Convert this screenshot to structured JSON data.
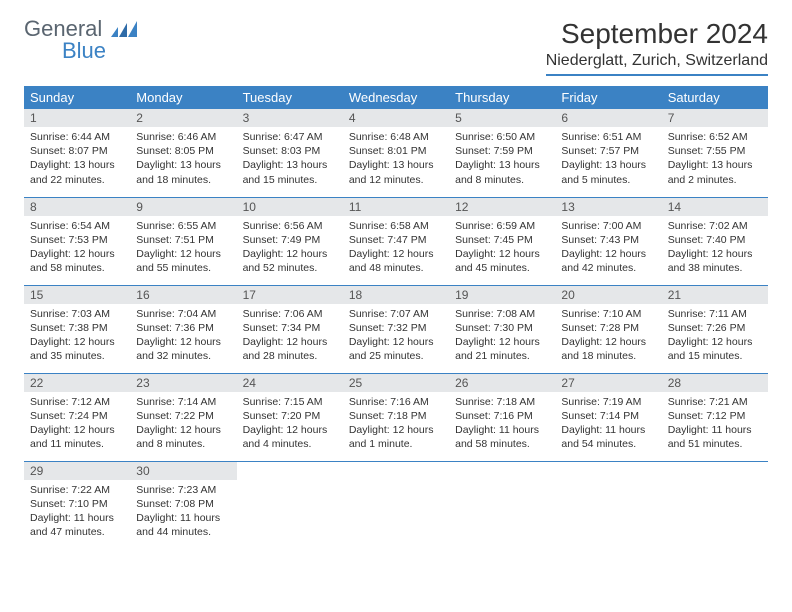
{
  "logo": {
    "general": "General",
    "blue": "Blue"
  },
  "title": "September 2024",
  "location": "Niederglatt, Zurich, Switzerland",
  "colors": {
    "header_bg": "#3b82c4",
    "daynum_bg": "#e5e7e9",
    "text": "#333333",
    "logo_gray": "#5a6570",
    "logo_blue": "#3b82c4"
  },
  "weekdays": [
    "Sunday",
    "Monday",
    "Tuesday",
    "Wednesday",
    "Thursday",
    "Friday",
    "Saturday"
  ],
  "weeks": [
    [
      {
        "n": "1",
        "sr": "Sunrise: 6:44 AM",
        "ss": "Sunset: 8:07 PM",
        "dl": "Daylight: 13 hours and 22 minutes."
      },
      {
        "n": "2",
        "sr": "Sunrise: 6:46 AM",
        "ss": "Sunset: 8:05 PM",
        "dl": "Daylight: 13 hours and 18 minutes."
      },
      {
        "n": "3",
        "sr": "Sunrise: 6:47 AM",
        "ss": "Sunset: 8:03 PM",
        "dl": "Daylight: 13 hours and 15 minutes."
      },
      {
        "n": "4",
        "sr": "Sunrise: 6:48 AM",
        "ss": "Sunset: 8:01 PM",
        "dl": "Daylight: 13 hours and 12 minutes."
      },
      {
        "n": "5",
        "sr": "Sunrise: 6:50 AM",
        "ss": "Sunset: 7:59 PM",
        "dl": "Daylight: 13 hours and 8 minutes."
      },
      {
        "n": "6",
        "sr": "Sunrise: 6:51 AM",
        "ss": "Sunset: 7:57 PM",
        "dl": "Daylight: 13 hours and 5 minutes."
      },
      {
        "n": "7",
        "sr": "Sunrise: 6:52 AM",
        "ss": "Sunset: 7:55 PM",
        "dl": "Daylight: 13 hours and 2 minutes."
      }
    ],
    [
      {
        "n": "8",
        "sr": "Sunrise: 6:54 AM",
        "ss": "Sunset: 7:53 PM",
        "dl": "Daylight: 12 hours and 58 minutes."
      },
      {
        "n": "9",
        "sr": "Sunrise: 6:55 AM",
        "ss": "Sunset: 7:51 PM",
        "dl": "Daylight: 12 hours and 55 minutes."
      },
      {
        "n": "10",
        "sr": "Sunrise: 6:56 AM",
        "ss": "Sunset: 7:49 PM",
        "dl": "Daylight: 12 hours and 52 minutes."
      },
      {
        "n": "11",
        "sr": "Sunrise: 6:58 AM",
        "ss": "Sunset: 7:47 PM",
        "dl": "Daylight: 12 hours and 48 minutes."
      },
      {
        "n": "12",
        "sr": "Sunrise: 6:59 AM",
        "ss": "Sunset: 7:45 PM",
        "dl": "Daylight: 12 hours and 45 minutes."
      },
      {
        "n": "13",
        "sr": "Sunrise: 7:00 AM",
        "ss": "Sunset: 7:43 PM",
        "dl": "Daylight: 12 hours and 42 minutes."
      },
      {
        "n": "14",
        "sr": "Sunrise: 7:02 AM",
        "ss": "Sunset: 7:40 PM",
        "dl": "Daylight: 12 hours and 38 minutes."
      }
    ],
    [
      {
        "n": "15",
        "sr": "Sunrise: 7:03 AM",
        "ss": "Sunset: 7:38 PM",
        "dl": "Daylight: 12 hours and 35 minutes."
      },
      {
        "n": "16",
        "sr": "Sunrise: 7:04 AM",
        "ss": "Sunset: 7:36 PM",
        "dl": "Daylight: 12 hours and 32 minutes."
      },
      {
        "n": "17",
        "sr": "Sunrise: 7:06 AM",
        "ss": "Sunset: 7:34 PM",
        "dl": "Daylight: 12 hours and 28 minutes."
      },
      {
        "n": "18",
        "sr": "Sunrise: 7:07 AM",
        "ss": "Sunset: 7:32 PM",
        "dl": "Daylight: 12 hours and 25 minutes."
      },
      {
        "n": "19",
        "sr": "Sunrise: 7:08 AM",
        "ss": "Sunset: 7:30 PM",
        "dl": "Daylight: 12 hours and 21 minutes."
      },
      {
        "n": "20",
        "sr": "Sunrise: 7:10 AM",
        "ss": "Sunset: 7:28 PM",
        "dl": "Daylight: 12 hours and 18 minutes."
      },
      {
        "n": "21",
        "sr": "Sunrise: 7:11 AM",
        "ss": "Sunset: 7:26 PM",
        "dl": "Daylight: 12 hours and 15 minutes."
      }
    ],
    [
      {
        "n": "22",
        "sr": "Sunrise: 7:12 AM",
        "ss": "Sunset: 7:24 PM",
        "dl": "Daylight: 12 hours and 11 minutes."
      },
      {
        "n": "23",
        "sr": "Sunrise: 7:14 AM",
        "ss": "Sunset: 7:22 PM",
        "dl": "Daylight: 12 hours and 8 minutes."
      },
      {
        "n": "24",
        "sr": "Sunrise: 7:15 AM",
        "ss": "Sunset: 7:20 PM",
        "dl": "Daylight: 12 hours and 4 minutes."
      },
      {
        "n": "25",
        "sr": "Sunrise: 7:16 AM",
        "ss": "Sunset: 7:18 PM",
        "dl": "Daylight: 12 hours and 1 minute."
      },
      {
        "n": "26",
        "sr": "Sunrise: 7:18 AM",
        "ss": "Sunset: 7:16 PM",
        "dl": "Daylight: 11 hours and 58 minutes."
      },
      {
        "n": "27",
        "sr": "Sunrise: 7:19 AM",
        "ss": "Sunset: 7:14 PM",
        "dl": "Daylight: 11 hours and 54 minutes."
      },
      {
        "n": "28",
        "sr": "Sunrise: 7:21 AM",
        "ss": "Sunset: 7:12 PM",
        "dl": "Daylight: 11 hours and 51 minutes."
      }
    ],
    [
      {
        "n": "29",
        "sr": "Sunrise: 7:22 AM",
        "ss": "Sunset: 7:10 PM",
        "dl": "Daylight: 11 hours and 47 minutes."
      },
      {
        "n": "30",
        "sr": "Sunrise: 7:23 AM",
        "ss": "Sunset: 7:08 PM",
        "dl": "Daylight: 11 hours and 44 minutes."
      },
      null,
      null,
      null,
      null,
      null
    ]
  ]
}
